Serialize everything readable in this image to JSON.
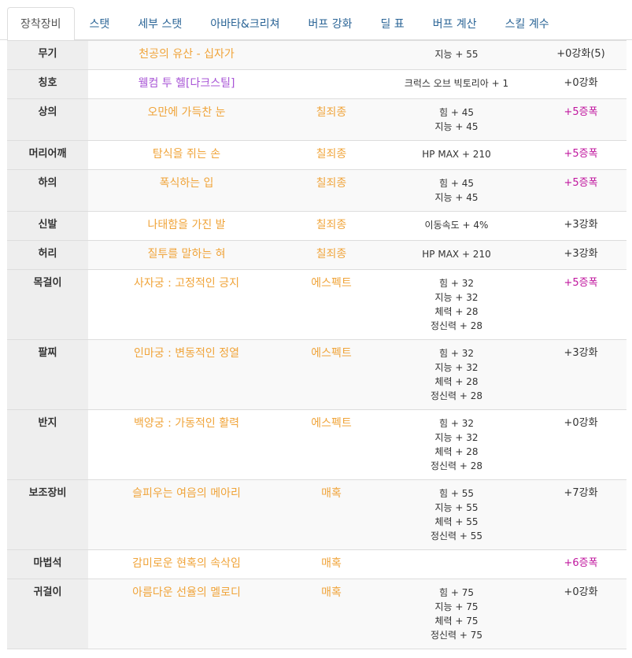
{
  "tabs": [
    {
      "label": "장착장비"
    },
    {
      "label": "스탯"
    },
    {
      "label": "세부 스탯"
    },
    {
      "label": "아바타&크리쳐"
    },
    {
      "label": "버프 강화"
    },
    {
      "label": "딜 표"
    },
    {
      "label": "버프 계산"
    },
    {
      "label": "스킬 계수"
    }
  ],
  "colors": {
    "tab_link": "#2a6496",
    "item_name_default": "#f0a43a",
    "item_name_title": "#a855d6",
    "set_name": "#f0a43a",
    "amplify": "#c0169e",
    "enhance": "#333333",
    "slot_bg": "#eeeeee"
  },
  "equipment": [
    {
      "slot": "무기",
      "name": "천공의 유산 - 십자가",
      "set": "",
      "options": [
        "지능 + 55"
      ],
      "enhance": "+0강화(5)",
      "enhance_type": "enhance",
      "name_color": "#f0a43a"
    },
    {
      "slot": "칭호",
      "name": "웰컴 투 헬[다크스틸]",
      "set": "",
      "options": [
        "크럭스 오브 빅토리아 + 1"
      ],
      "enhance": "+0강화",
      "enhance_type": "enhance",
      "name_color": "#a855d6"
    },
    {
      "slot": "상의",
      "name": "오만에 가득찬 눈",
      "set": "칠죄종",
      "options": [
        "힘 + 45",
        "지능 + 45"
      ],
      "enhance": "+5증폭",
      "enhance_type": "amplify",
      "name_color": "#f0a43a"
    },
    {
      "slot": "머리어깨",
      "name": "탐식을 쥐는 손",
      "set": "칠죄종",
      "options": [
        "HP MAX + 210"
      ],
      "enhance": "+5증폭",
      "enhance_type": "amplify",
      "name_color": "#f0a43a"
    },
    {
      "slot": "하의",
      "name": "폭식하는 입",
      "set": "칠죄종",
      "options": [
        "힘 + 45",
        "지능 + 45"
      ],
      "enhance": "+5증폭",
      "enhance_type": "amplify",
      "name_color": "#f0a43a"
    },
    {
      "slot": "신발",
      "name": "나태함을 가진 발",
      "set": "칠죄종",
      "options": [
        "이동속도 + 4%"
      ],
      "enhance": "+3강화",
      "enhance_type": "enhance",
      "name_color": "#f0a43a"
    },
    {
      "slot": "허리",
      "name": "질투를 말하는 혀",
      "set": "칠죄종",
      "options": [
        "HP MAX + 210"
      ],
      "enhance": "+3강화",
      "enhance_type": "enhance",
      "name_color": "#f0a43a"
    },
    {
      "slot": "목걸이",
      "name": "사자궁 : 고정적인 긍지",
      "set": "에스펙트",
      "options": [
        "힘 + 32",
        "지능 + 32",
        "체력 + 28",
        "정신력 + 28"
      ],
      "enhance": "+5증폭",
      "enhance_type": "amplify",
      "name_color": "#f0a43a"
    },
    {
      "slot": "팔찌",
      "name": "인마궁 : 변동적인 정열",
      "set": "에스펙트",
      "options": [
        "힘 + 32",
        "지능 + 32",
        "체력 + 28",
        "정신력 + 28"
      ],
      "enhance": "+3강화",
      "enhance_type": "enhance",
      "name_color": "#f0a43a"
    },
    {
      "slot": "반지",
      "name": "백양궁 : 가동적인 활력",
      "set": "에스펙트",
      "options": [
        "힘 + 32",
        "지능 + 32",
        "체력 + 28",
        "정신력 + 28"
      ],
      "enhance": "+0강화",
      "enhance_type": "enhance",
      "name_color": "#f0a43a"
    },
    {
      "slot": "보조장비",
      "name": "슬피우는 여음의 메아리",
      "set": "매혹",
      "options": [
        "힘 + 55",
        "지능 + 55",
        "체력 + 55",
        "정신력 + 55"
      ],
      "enhance": "+7강화",
      "enhance_type": "enhance",
      "name_color": "#f0a43a"
    },
    {
      "slot": "마법석",
      "name": "감미로운 현혹의 속삭임",
      "set": "매혹",
      "options": [],
      "enhance": "+6증폭",
      "enhance_type": "amplify",
      "name_color": "#f0a43a"
    },
    {
      "slot": "귀걸이",
      "name": "아름다운 선율의 멜로디",
      "set": "매혹",
      "options": [
        "힘 + 75",
        "지능 + 75",
        "체력 + 75",
        "정신력 + 75"
      ],
      "enhance": "+0강화",
      "enhance_type": "enhance",
      "name_color": "#f0a43a"
    }
  ]
}
